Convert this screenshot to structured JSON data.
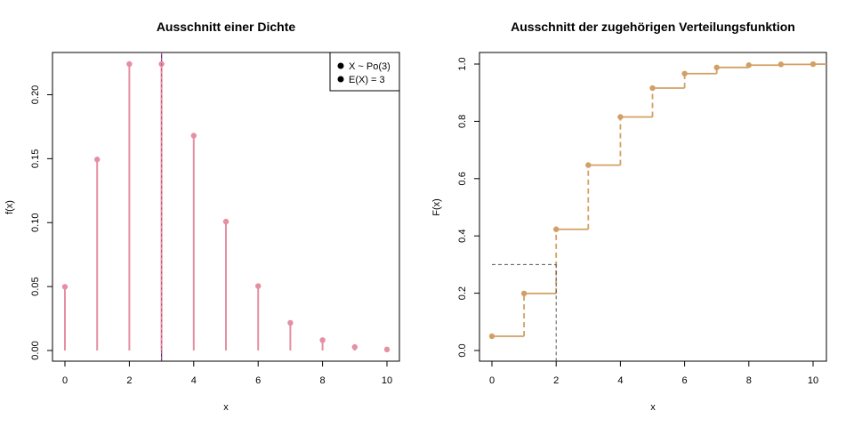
{
  "chart_data": [
    {
      "type": "stem",
      "title": "Ausschnitt einer Dichte",
      "xlabel": "x",
      "ylabel": "f(x)",
      "xlim": [
        -0.3,
        10.3
      ],
      "ylim": [
        0,
        0.232
      ],
      "xticks": [
        "0",
        "2",
        "4",
        "6",
        "8",
        "10"
      ],
      "yticks": [
        "0.00",
        "0.05",
        "0.10",
        "0.15",
        "0.20"
      ],
      "x": [
        0,
        1,
        2,
        3,
        4,
        5,
        6,
        7,
        8,
        9,
        10
      ],
      "y": [
        0.0498,
        0.1494,
        0.224,
        0.224,
        0.168,
        0.1008,
        0.0504,
        0.0216,
        0.0081,
        0.0027,
        0.0008
      ],
      "mean_line_x": 3,
      "legend": {
        "position": "top-right",
        "entries": [
          "X ~ Po(3)",
          "E(X) = 3"
        ]
      },
      "colors": {
        "stem": "#E58FA5",
        "mean_line": "#4B3A6E",
        "mean_line_dash": "#C2527A"
      },
      "grid": false
    },
    {
      "type": "step",
      "title": "Ausschnitt der zugehörigen Verteilungsfunktion",
      "xlabel": "x",
      "ylabel": "F(x)",
      "xlim": [
        -0.4,
        10.4
      ],
      "ylim": [
        0,
        1.0
      ],
      "xticks": [
        "0",
        "2",
        "4",
        "6",
        "8",
        "10"
      ],
      "yticks": [
        "0.0",
        "0.2",
        "0.4",
        "0.6",
        "0.8",
        "1.0"
      ],
      "x": [
        0,
        1,
        2,
        3,
        4,
        5,
        6,
        7,
        8,
        9,
        10
      ],
      "y": [
        0.0498,
        0.1991,
        0.4232,
        0.6472,
        0.8153,
        0.9161,
        0.9665,
        0.9881,
        0.9962,
        0.9989,
        0.9997
      ],
      "quantile_guide": {
        "p": 0.3,
        "x": 2
      },
      "colors": {
        "step": "#D2A064",
        "guide": "#555555"
      },
      "grid": false
    }
  ]
}
